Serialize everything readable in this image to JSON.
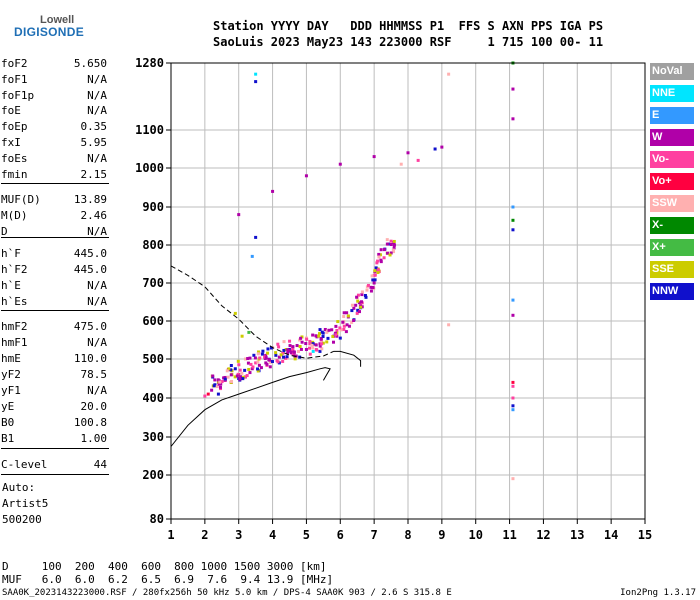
{
  "logo": {
    "line1": "Lowell",
    "line2": "DIGISONDE"
  },
  "header": {
    "line1": "Station YYYY DAY   DDD HHMMSS P1  FFS S AXN PPS IGA PS",
    "line2": "SaoLuis 2023 May23 143 223000 RSF     1 715 100 00- 11"
  },
  "params": [
    {
      "name": "foF2",
      "value": "5.650"
    },
    {
      "name": "foF1",
      "value": "N/A"
    },
    {
      "name": "foF1p",
      "value": "N/A"
    },
    {
      "name": "foE",
      "value": "N/A"
    },
    {
      "name": "foEp",
      "value": "0.35"
    },
    {
      "name": "fxI",
      "value": "5.95"
    },
    {
      "name": "foEs",
      "value": "N/A"
    },
    {
      "name": "fmin",
      "value": "2.15"
    },
    {
      "name": "MUF(D)",
      "value": "13.89"
    },
    {
      "name": "M(D)",
      "value": "2.46"
    },
    {
      "name": "D",
      "value": "N/A"
    },
    {
      "name": "h`F",
      "value": "445.0"
    },
    {
      "name": "h`F2",
      "value": "445.0"
    },
    {
      "name": "h`E",
      "value": "N/A"
    },
    {
      "name": "h`Es",
      "value": "N/A"
    },
    {
      "name": "hmF2",
      "value": "475.0"
    },
    {
      "name": "hmF1",
      "value": "N/A"
    },
    {
      "name": "hmE",
      "value": "110.0"
    },
    {
      "name": "yF2",
      "value": "78.5"
    },
    {
      "name": "yF1",
      "value": "N/A"
    },
    {
      "name": "yE",
      "value": "20.0"
    },
    {
      "name": "B0",
      "value": "100.8"
    },
    {
      "name": "B1",
      "value": "1.00"
    },
    {
      "name": "C-level",
      "value": "44"
    }
  ],
  "auto": {
    "label": "Auto:",
    "line2": "Artist5",
    "line3": "500200"
  },
  "legend": [
    {
      "label": "NoVal",
      "color": "#a0a0a0"
    },
    {
      "label": "NNE",
      "color": "#00e5ff"
    },
    {
      "label": "E",
      "color": "#3399ff"
    },
    {
      "label": "W",
      "color": "#b000a8"
    },
    {
      "label": "Vo-",
      "color": "#ff40a0"
    },
    {
      "label": "Vo+",
      "color": "#ff0040"
    },
    {
      "label": "SSW",
      "color": "#ffb0b0"
    },
    {
      "label": "X-",
      "color": "#008800"
    },
    {
      "label": "X+",
      "color": "#44bb44"
    },
    {
      "label": "SSE",
      "color": "#cccc00"
    },
    {
      "label": "NNW",
      "color": "#1010cc"
    }
  ],
  "dtable": {
    "d_row": "D     100  200  400  600  800 1000 1500 3000 [km]",
    "muf_row": "MUF   6.0  6.0  6.2  6.5  6.9  7.6  9.4 13.9 [MHz]"
  },
  "footer": {
    "left": "SAA0K_2023143223000.RSF / 280fx256h 50 kHz 5.0 km / DPS-4 SAA0K 903 / 2.6 S 315.8 E",
    "right": "Ion2Png 1.3.17"
  },
  "chart_data": {
    "type": "scatter",
    "xlabel": "",
    "ylabel": "",
    "x_ticks": [
      1,
      2,
      3,
      4,
      5,
      6,
      7,
      8,
      9,
      10,
      11,
      12,
      13,
      14,
      15
    ],
    "y_ticks": [
      80,
      200,
      300,
      400,
      500,
      600,
      700,
      800,
      900,
      1000,
      1100,
      1280
    ],
    "xlim": [
      1,
      15
    ],
    "ylim": [
      80,
      1280
    ],
    "grid": true,
    "series": [
      {
        "name": "W",
        "color": "#b000a8",
        "points": [
          [
            2.2,
            420
          ],
          [
            2.6,
            445
          ],
          [
            3.0,
            460
          ],
          [
            3.4,
            475
          ],
          [
            3.8,
            490
          ],
          [
            4.2,
            505
          ],
          [
            4.6,
            515
          ],
          [
            5.0,
            525
          ],
          [
            5.4,
            540
          ],
          [
            5.8,
            560
          ],
          [
            6.2,
            590
          ],
          [
            6.6,
            640
          ],
          [
            7.0,
            700
          ],
          [
            7.2,
            760
          ],
          [
            7.6,
            800
          ],
          [
            3.0,
            880
          ],
          [
            4.0,
            940
          ],
          [
            5.0,
            980
          ],
          [
            6.0,
            1010
          ],
          [
            7.0,
            1030
          ],
          [
            8.0,
            1040
          ],
          [
            9.0,
            1055
          ],
          [
            11.1,
            1210
          ],
          [
            11.1,
            1130
          ],
          [
            11.1,
            615
          ]
        ]
      },
      {
        "name": "NNW",
        "color": "#1010cc",
        "points": [
          [
            2.4,
            410
          ],
          [
            3.0,
            450
          ],
          [
            3.6,
            470
          ],
          [
            4.2,
            490
          ],
          [
            4.8,
            505
          ],
          [
            5.4,
            520
          ],
          [
            6.0,
            555
          ],
          [
            3.5,
            1230
          ],
          [
            3.5,
            820
          ],
          [
            11.1,
            840
          ],
          [
            11.1,
            380
          ],
          [
            8.8,
            1050
          ]
        ]
      },
      {
        "name": "Vo-",
        "color": "#ff40a0",
        "points": [
          [
            2.0,
            405
          ],
          [
            2.8,
            470
          ],
          [
            3.5,
            490
          ],
          [
            4.3,
            515
          ],
          [
            5.1,
            540
          ],
          [
            5.9,
            575
          ],
          [
            6.5,
            620
          ],
          [
            7.0,
            720
          ],
          [
            7.5,
            810
          ],
          [
            8.3,
            1020
          ],
          [
            11.1,
            430
          ],
          [
            11.1,
            400
          ]
        ]
      },
      {
        "name": "SSW",
        "color": "#ffb0b0",
        "points": [
          [
            3.2,
            500
          ],
          [
            4.0,
            530
          ],
          [
            4.8,
            550
          ],
          [
            5.6,
            570
          ],
          [
            6.8,
            690
          ],
          [
            7.8,
            1010
          ],
          [
            9.2,
            1250
          ],
          [
            9.2,
            590
          ],
          [
            11.1,
            190
          ]
        ]
      },
      {
        "name": "SSE",
        "color": "#cccc00",
        "points": [
          [
            2.4,
            440
          ],
          [
            2.9,
            620
          ],
          [
            3.1,
            560
          ],
          [
            3.6,
            500
          ],
          [
            4.4,
            525
          ],
          [
            5.6,
            545
          ],
          [
            2.8,
            470
          ]
        ]
      },
      {
        "name": "E",
        "color": "#3399ff",
        "points": [
          [
            3.4,
            770
          ],
          [
            4.5,
            520
          ],
          [
            11.1,
            655
          ],
          [
            11.1,
            900
          ],
          [
            11.1,
            370
          ]
        ]
      },
      {
        "name": "NNE",
        "color": "#00e5ff",
        "points": [
          [
            3.5,
            1250
          ],
          [
            5.2,
            520
          ]
        ]
      },
      {
        "name": "X-",
        "color": "#008800",
        "points": [
          [
            11.1,
            1280
          ],
          [
            11.1,
            865
          ]
        ]
      },
      {
        "name": "X+",
        "color": "#44bb44",
        "points": [
          [
            3.3,
            570
          ]
        ]
      },
      {
        "name": "Vo+",
        "color": "#ff0040",
        "points": [
          [
            2.1,
            410
          ],
          [
            11.1,
            440
          ]
        ]
      },
      {
        "name": "NoVal",
        "color": "#a0a0a0",
        "points": []
      }
    ],
    "profile": {
      "name": "",
      "color": "#000000",
      "points": [
        [
          1.0,
          275
        ],
        [
          1.5,
          330
        ],
        [
          2.0,
          370
        ],
        [
          2.5,
          395
        ],
        [
          3.0,
          410
        ],
        [
          3.5,
          425
        ],
        [
          4.0,
          440
        ],
        [
          4.5,
          455
        ],
        [
          5.0,
          465
        ],
        [
          5.4,
          475
        ],
        [
          5.55,
          478
        ],
        [
          5.7,
          475
        ],
        [
          5.6,
          460
        ],
        [
          5.5,
          445
        ]
      ]
    },
    "trace_dashed": {
      "name": "",
      "color": "#000000",
      "points": [
        [
          1.0,
          745
        ],
        [
          1.5,
          720
        ],
        [
          2.0,
          690
        ],
        [
          2.5,
          640
        ],
        [
          3.0,
          605
        ],
        [
          3.5,
          560
        ],
        [
          4.0,
          530
        ],
        [
          4.5,
          510
        ],
        [
          5.0,
          502
        ],
        [
          5.5,
          508
        ],
        [
          5.8,
          520
        ]
      ]
    },
    "trace_solid": {
      "name": "",
      "color": "#000000",
      "points": [
        [
          5.8,
          520
        ],
        [
          6.0,
          520
        ],
        [
          6.4,
          510
        ],
        [
          6.6,
          496
        ],
        [
          6.6,
          480
        ]
      ]
    }
  }
}
